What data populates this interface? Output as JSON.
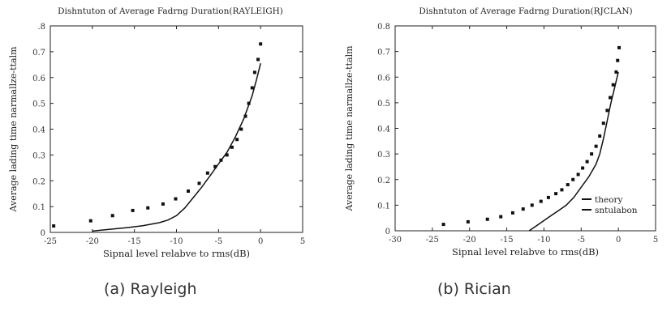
{
  "captions": {
    "a": "(a) Rayleigh",
    "b": "(b) Rician"
  },
  "chart_data": [
    {
      "type": "line",
      "title": "Dishntuton of Average Fadrng Duration(RAYLEIGH)",
      "xlabel": "Sipnal level relabve to rms(dB)",
      "ylabel": "Average lading time narmallze-ttalm",
      "xlim": [
        -25,
        5
      ],
      "ylim": [
        0,
        0.8
      ],
      "xticks": [
        -25,
        -20,
        -15,
        -10,
        -5,
        0,
        5
      ],
      "xtick_labels": [
        "-25",
        "-20",
        "-15",
        "-10",
        "-5",
        "0",
        "5"
      ],
      "yticks": [
        0,
        0.1,
        0.2,
        0.3,
        0.4,
        0.5,
        0.6,
        0.7,
        0.8
      ],
      "ytick_labels": [
        "0",
        "0.1",
        "0.2",
        "0.3",
        "0.4",
        "0.5",
        "0.6",
        "0.7",
        ".8"
      ],
      "grid": false,
      "legend": null,
      "series": [
        {
          "style": "line",
          "x": [
            -20,
            -18,
            -16,
            -14,
            -12,
            -11,
            -10,
            -9,
            -8,
            -7,
            -6,
            -5,
            -4,
            -3,
            -2,
            -1,
            -0.5,
            0
          ],
          "y": [
            0.005,
            0.012,
            0.018,
            0.026,
            0.038,
            0.048,
            0.065,
            0.095,
            0.135,
            0.175,
            0.22,
            0.265,
            0.31,
            0.37,
            0.44,
            0.53,
            0.59,
            0.655
          ]
        },
        {
          "style": "markers",
          "x": [
            -24.6,
            -20.2,
            -17.6,
            -15.2,
            -13.4,
            -11.6,
            -10.1,
            -8.6,
            -7.3,
            -6.3,
            -5.4,
            -4.7,
            -4.0,
            -3.4,
            -2.8,
            -2.3,
            -1.8,
            -1.4,
            -1.0,
            -0.7,
            -0.3,
            0.0
          ],
          "y": [
            0.025,
            0.045,
            0.065,
            0.085,
            0.095,
            0.11,
            0.13,
            0.16,
            0.19,
            0.23,
            0.255,
            0.28,
            0.3,
            0.33,
            0.36,
            0.4,
            0.45,
            0.5,
            0.56,
            0.62,
            0.67,
            0.73
          ]
        }
      ]
    },
    {
      "type": "line",
      "title": "Dishntuton of Average Fadrng Duration(RJCLAN)",
      "xlabel": "Sipnal level relabve to rms(dB)",
      "ylabel": "Average lading time narmallze-ttalm",
      "xlim": [
        -30,
        5
      ],
      "ylim": [
        0,
        0.8
      ],
      "xticks": [
        -30,
        -25,
        -20,
        -15,
        -10,
        -5,
        0,
        5
      ],
      "xtick_labels": [
        "-30",
        "-25",
        "-20",
        "-15",
        "-10",
        "-5",
        "0",
        "5"
      ],
      "yticks": [
        0,
        0.1,
        0.2,
        0.3,
        0.4,
        0.5,
        0.6,
        0.7,
        0.8
      ],
      "ytick_labels": [
        "0",
        "0.1",
        "0.2",
        "0.3",
        "0.4",
        "0.5",
        "0.6",
        "0.7",
        "0.8"
      ],
      "grid": false,
      "legend": "bottom-right",
      "series": [
        {
          "name": "theory",
          "style": "line",
          "x": [
            -12,
            -11,
            -10,
            -9,
            -8,
            -7,
            -6,
            -5,
            -4,
            -3,
            -2.5,
            -2,
            -1.5,
            -1,
            -0.5,
            0
          ],
          "y": [
            0.0,
            0.02,
            0.04,
            0.06,
            0.08,
            0.1,
            0.13,
            0.17,
            0.21,
            0.26,
            0.3,
            0.36,
            0.43,
            0.5,
            0.56,
            0.62
          ]
        },
        {
          "name": "sntulabon",
          "style": "markers",
          "x": [
            -23.5,
            -20.2,
            -17.6,
            -15.8,
            -14.2,
            -12.8,
            -11.6,
            -10.4,
            -9.4,
            -8.4,
            -7.6,
            -6.8,
            -6.1,
            -5.4,
            -4.8,
            -4.2,
            -3.6,
            -3.0,
            -2.5,
            -2.0,
            -1.5,
            -1.1,
            -0.7,
            -0.3,
            -0.1,
            0.1
          ],
          "y": [
            0.025,
            0.035,
            0.045,
            0.055,
            0.07,
            0.085,
            0.1,
            0.115,
            0.13,
            0.145,
            0.16,
            0.18,
            0.2,
            0.22,
            0.245,
            0.27,
            0.3,
            0.33,
            0.37,
            0.42,
            0.47,
            0.52,
            0.57,
            0.62,
            0.665,
            0.715
          ]
        }
      ]
    }
  ]
}
